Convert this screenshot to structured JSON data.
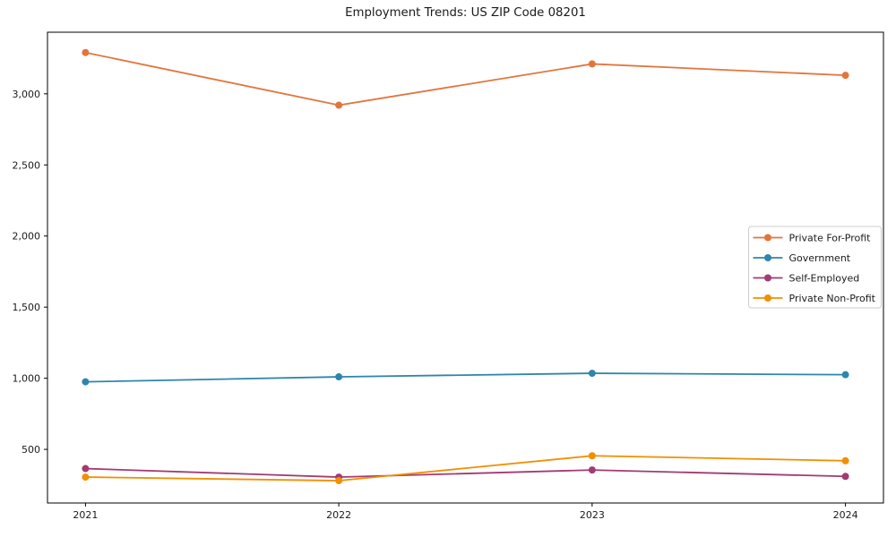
{
  "figure": {
    "background": "#ffffff",
    "text_color": "#1a1a1a",
    "spine_color": "#000000",
    "legend_border_color": "#cccccc",
    "legend_background": "#ffffff"
  },
  "chart_data": {
    "type": "line",
    "title": "Employment Trends: US ZIP Code 08201",
    "xlabel": "",
    "ylabel": "",
    "x": [
      2021,
      2022,
      2023,
      2024
    ],
    "xtick_labels": [
      "2021",
      "2022",
      "2023",
      "2024"
    ],
    "series": [
      {
        "name": "Private For-Profit",
        "color": "#E2753C",
        "values": [
          3290,
          2920,
          3210,
          3130
        ]
      },
      {
        "name": "Government",
        "color": "#2E86AB",
        "values": [
          975,
          1010,
          1035,
          1025
        ]
      },
      {
        "name": "Self-Employed",
        "color": "#A23B72",
        "values": [
          365,
          305,
          355,
          310
        ]
      },
      {
        "name": "Private Non-Profit",
        "color": "#F18F01",
        "values": [
          305,
          280,
          455,
          420
        ]
      }
    ],
    "yticks": [
      500,
      1000,
      1500,
      2000,
      2500,
      3000
    ],
    "ytick_labels": [
      "500",
      "1,000",
      "1,500",
      "2,000",
      "2,500",
      "3,000"
    ],
    "xlim": [
      2020.85,
      2024.15
    ],
    "ylim": [
      123,
      3433
    ],
    "grid": false,
    "legend": {
      "position": "center right",
      "entries": [
        "Private For-Profit",
        "Government",
        "Self-Employed",
        "Private Non-Profit"
      ]
    }
  }
}
